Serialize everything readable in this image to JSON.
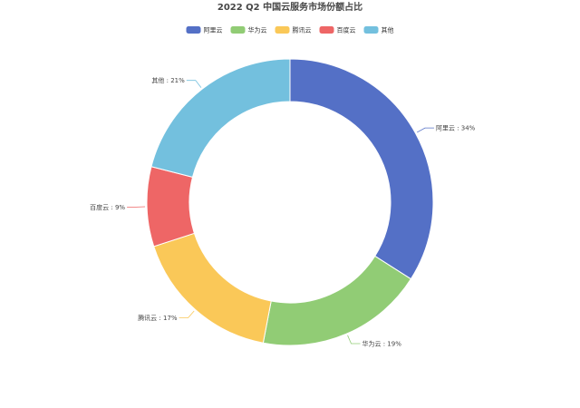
{
  "chart_data": {
    "type": "pie",
    "title": "2022 Q2 中国云服务市场份额占比",
    "donut": true,
    "legend_position": "top",
    "label_separator": " : ",
    "value_suffix": "%",
    "slices": [
      {
        "name": "阿里云",
        "value": 34,
        "color": "#5470c6"
      },
      {
        "name": "华为云",
        "value": 19,
        "color": "#91cc75"
      },
      {
        "name": "腾讯云",
        "value": 17,
        "color": "#fac858"
      },
      {
        "name": "百度云",
        "value": 9,
        "color": "#ee6666"
      },
      {
        "name": "其他",
        "value": 21,
        "color": "#73c0de"
      }
    ]
  }
}
